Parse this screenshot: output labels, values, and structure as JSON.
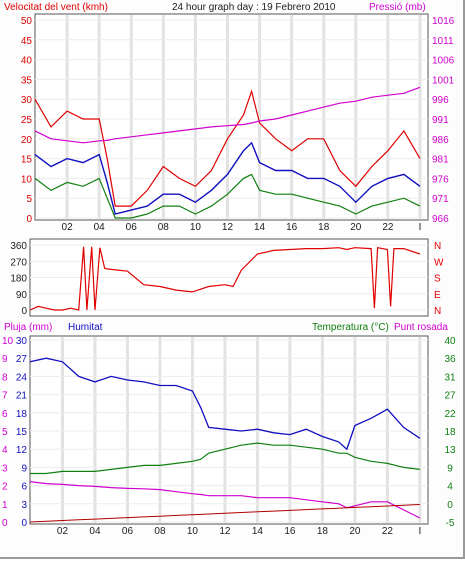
{
  "chart_data": [
    {
      "type": "line",
      "title": "24 hour graph day : 19 Febrero 2010",
      "ylabel_left": "Velocitat del vent (kmh)",
      "ylabel_right": "Pressió (mb)",
      "colors": {
        "left": "#e00000",
        "right": "#d000d0",
        "gust": "#e00000",
        "avg": "#1010c0",
        "min": "#108010",
        "pressure": "#d000d0"
      },
      "x_ticks": [
        "02",
        "04",
        "06",
        "08",
        "10",
        "12",
        "14",
        "16",
        "18",
        "20",
        "22",
        "I"
      ],
      "ylim_left": [
        0,
        50
      ],
      "yticks_left": [
        "50",
        "45",
        "40",
        "35",
        "30",
        "25",
        "20",
        "15",
        "10",
        "5",
        "0"
      ],
      "ylim_right": [
        966,
        1016
      ],
      "yticks_right": [
        "1016",
        "1011",
        "1006",
        "1001",
        "996",
        "991",
        "986",
        "981",
        "976",
        "971",
        "966"
      ],
      "x_hours": [
        0,
        1,
        2,
        3,
        4,
        4.5,
        5,
        6,
        7,
        8,
        9,
        10,
        11,
        12,
        13,
        13.5,
        14,
        15,
        16,
        17,
        18,
        19,
        20,
        21,
        22,
        23,
        24
      ],
      "series": [
        {
          "key": "gust",
          "values": [
            30,
            23,
            27,
            25,
            25,
            15,
            3,
            3,
            7,
            13,
            10,
            8,
            12,
            20,
            26,
            32,
            24,
            20,
            17,
            20,
            20,
            12,
            8,
            13,
            17,
            22,
            15
          ]
        },
        {
          "key": "avg",
          "values": [
            16,
            13,
            15,
            14,
            16,
            9,
            1,
            2,
            3,
            6,
            6,
            4,
            7,
            11,
            17,
            19,
            14,
            12,
            12,
            10,
            10,
            8,
            4,
            8,
            10,
            11,
            8
          ]
        },
        {
          "key": "min",
          "values": [
            10,
            7,
            9,
            8,
            10,
            5,
            0,
            0,
            1,
            3,
            3,
            1,
            3,
            6,
            10,
            11,
            7,
            6,
            6,
            5,
            4,
            3,
            1,
            3,
            4,
            5,
            3
          ]
        },
        {
          "key": "pressure",
          "values": [
            988,
            986,
            985.5,
            985,
            985.5,
            985.6,
            986,
            986.5,
            987,
            987.5,
            988,
            988.5,
            989,
            989.3,
            989.6,
            990,
            990.5,
            991,
            992,
            993,
            994,
            995,
            995.5,
            996.5,
            997,
            997.5,
            999
          ]
        }
      ]
    },
    {
      "type": "line",
      "ylabel_right": "N W S E N",
      "color": "#e00000",
      "ylim": [
        0,
        360
      ],
      "yticks": [
        "360",
        "270",
        "180",
        "90",
        "0"
      ],
      "right_labels": [
        "N",
        "W",
        "S",
        "E",
        "N"
      ],
      "x_hours": [
        0,
        0.5,
        1,
        1.5,
        2,
        2.5,
        3,
        3.3,
        3.5,
        3.8,
        4,
        4.3,
        4.6,
        5,
        6,
        7,
        8,
        9,
        10,
        11,
        12,
        12.5,
        13,
        14,
        15,
        16,
        17,
        18,
        19,
        19.5,
        20,
        21,
        21.2,
        21.4,
        22,
        22.2,
        22.4,
        23,
        24
      ],
      "values": [
        0,
        20,
        10,
        0,
        0,
        10,
        0,
        350,
        0,
        350,
        0,
        345,
        230,
        225,
        215,
        140,
        130,
        110,
        100,
        130,
        140,
        130,
        220,
        310,
        330,
        335,
        340,
        340,
        345,
        335,
        345,
        340,
        10,
        345,
        335,
        20,
        340,
        340,
        310
      ]
    },
    {
      "type": "line",
      "ylabel_left": "Pluja (mm)",
      "ylabel_left2": "Humitat",
      "ylabel_right": "Temperatura (°C)",
      "ylabel_right2": "Punt rosada",
      "colors": {
        "rain": "#b00000",
        "humidity": "#1010c0",
        "temp": "#108010",
        "dew": "#d000d0"
      },
      "yticks_left_rain": [
        "10",
        "9",
        "8",
        "7",
        "6",
        "5",
        "4",
        "3",
        "2",
        "1",
        "0"
      ],
      "yticks_left_hum": [
        "30",
        "27",
        "24",
        "21",
        "18",
        "15",
        "12",
        "9",
        "6",
        "3",
        "0"
      ],
      "ylim_hum": [
        0,
        100
      ],
      "yticks_right": [
        "40",
        "36",
        "31",
        "27",
        "22",
        "18",
        "13",
        "9",
        "4",
        "0",
        "-5"
      ],
      "ylim_right": [
        -5,
        40
      ],
      "x_hours": [
        0,
        1,
        2,
        3,
        4,
        5,
        6,
        7,
        8,
        9,
        10,
        10.5,
        11,
        12,
        13,
        14,
        15,
        16,
        17,
        18,
        19,
        19.5,
        20,
        21,
        22,
        23,
        24
      ],
      "series": [
        {
          "key": "humidity",
          "values": [
            88,
            90,
            88,
            80,
            77,
            80,
            78,
            77,
            75,
            75,
            72,
            63,
            52,
            51,
            50,
            51,
            49,
            48,
            51,
            47,
            44,
            40,
            53,
            57,
            62,
            52,
            46
          ]
        },
        {
          "key": "temp",
          "values": [
            7,
            7,
            7.5,
            7.5,
            7.5,
            8,
            8.5,
            9,
            9,
            9.5,
            10,
            10.5,
            12,
            13,
            14,
            14.5,
            14,
            14,
            13.5,
            13,
            12,
            12,
            11,
            10,
            9.5,
            8.5,
            8
          ]
        },
        {
          "key": "dew",
          "values": [
            5,
            4.5,
            4.3,
            4,
            3.8,
            3.5,
            3.3,
            3.2,
            3,
            2.5,
            2,
            1.8,
            1.5,
            1.5,
            1.5,
            1,
            1,
            1,
            0.5,
            0,
            -0.5,
            -1.5,
            -1,
            0,
            0,
            -2,
            -4
          ]
        },
        {
          "key": "rain",
          "values": [
            0,
            0.04,
            0.08,
            0.12,
            0.16,
            0.2,
            0.24,
            0.28,
            0.32,
            0.36,
            0.4,
            0.42,
            0.44,
            0.48,
            0.52,
            0.56,
            0.6,
            0.64,
            0.68,
            0.72,
            0.76,
            0.78,
            0.8,
            0.84,
            0.88,
            0.92,
            0.96
          ]
        }
      ]
    }
  ]
}
